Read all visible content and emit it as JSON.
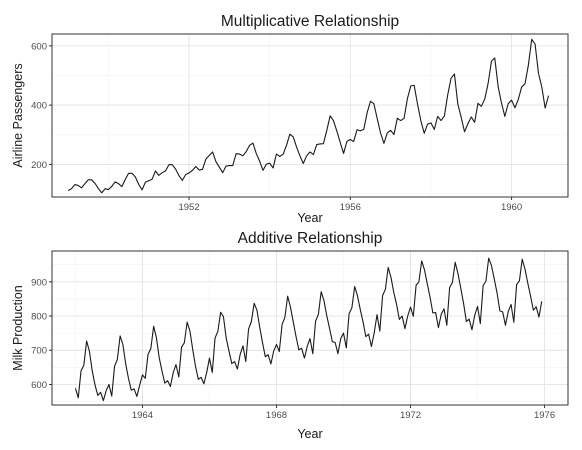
{
  "chart_data": [
    {
      "type": "line",
      "title": "Multiplicative Relationship",
      "xlabel": "Year",
      "ylabel": "Airline Passengers",
      "xlim": [
        1948.6,
        1961.4
      ],
      "ylim": [
        90,
        640
      ],
      "xticks": [
        1952,
        1956,
        1960
      ],
      "yticks": [
        200,
        400,
        600
      ],
      "grid": true,
      "x_start": 1949.0,
      "x_step": 0.0833333,
      "series": [
        {
          "color": "#1a1a1a",
          "values": [
            112,
            118,
            132,
            129,
            121,
            135,
            148,
            148,
            136,
            119,
            104,
            118,
            115,
            126,
            141,
            135,
            125,
            149,
            170,
            170,
            158,
            133,
            114,
            140,
            145,
            150,
            178,
            163,
            172,
            178,
            199,
            199,
            184,
            162,
            146,
            166,
            171,
            180,
            193,
            181,
            183,
            218,
            230,
            242,
            209,
            191,
            172,
            194,
            196,
            196,
            236,
            235,
            229,
            243,
            264,
            272,
            237,
            211,
            180,
            201,
            204,
            188,
            235,
            227,
            234,
            264,
            302,
            293,
            259,
            229,
            203,
            229,
            242,
            233,
            267,
            269,
            270,
            315,
            364,
            347,
            312,
            274,
            237,
            278,
            284,
            277,
            317,
            313,
            318,
            374,
            413,
            405,
            355,
            306,
            271,
            306,
            315,
            301,
            356,
            348,
            355,
            422,
            465,
            467,
            404,
            347,
            305,
            336,
            340,
            318,
            362,
            348,
            363,
            435,
            491,
            505,
            404,
            359,
            310,
            337,
            360,
            342,
            406,
            396,
            420,
            472,
            548,
            559,
            463,
            407,
            362,
            405,
            417,
            391,
            419,
            461,
            472,
            535,
            622,
            606,
            508,
            461,
            390,
            432
          ]
        }
      ]
    },
    {
      "type": "line",
      "title": "Additive Relationship",
      "xlabel": "Year",
      "ylabel": "Milk Production",
      "xlim": [
        1961.3,
        1976.7
      ],
      "ylim": [
        540,
        990
      ],
      "xticks": [
        1964,
        1968,
        1972,
        1976
      ],
      "yticks": [
        600,
        700,
        800,
        900
      ],
      "grid": true,
      "x_start": 1962.0,
      "x_step": 0.0833333,
      "series": [
        {
          "color": "#1a1a1a",
          "values": [
            589,
            561,
            640,
            656,
            727,
            697,
            640,
            599,
            568,
            577,
            553,
            582,
            600,
            566,
            653,
            673,
            742,
            716,
            660,
            617,
            583,
            587,
            565,
            598,
            628,
            618,
            688,
            705,
            770,
            736,
            678,
            639,
            604,
            611,
            594,
            634,
            658,
            622,
            709,
            722,
            782,
            756,
            702,
            653,
            615,
            621,
            602,
            635,
            677,
            635,
            736,
            755,
            811,
            798,
            735,
            697,
            661,
            667,
            645,
            688,
            713,
            667,
            762,
            784,
            837,
            817,
            767,
            722,
            681,
            687,
            660,
            698,
            717,
            696,
            775,
            796,
            858,
            826,
            783,
            740,
            701,
            706,
            677,
            711,
            734,
            690,
            785,
            805,
            871,
            845,
            801,
            764,
            725,
            723,
            690,
            734,
            750,
            707,
            807,
            824,
            886,
            859,
            819,
            783,
            740,
            747,
            711,
            751,
            804,
            756,
            860,
            878,
            942,
            913,
            869,
            834,
            790,
            800,
            763,
            800,
            826,
            799,
            890,
            900,
            961,
            935,
            894,
            855,
            809,
            810,
            766,
            805,
            821,
            773,
            883,
            898,
            957,
            924,
            881,
            837,
            784,
            791,
            760,
            802,
            828,
            778,
            889,
            902,
            969,
            947,
            908,
            867,
            815,
            812,
            773,
            813,
            834,
            782,
            892,
            903,
            966,
            937,
            896,
            858,
            817,
            827,
            797,
            843
          ]
        }
      ]
    }
  ]
}
